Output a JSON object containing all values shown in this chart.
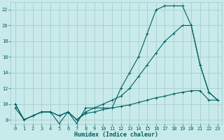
{
  "xlabel": "Humidex (Indice chaleur)",
  "bg_color": "#c8eaea",
  "grid_color": "#a0c8c8",
  "line_color": "#006060",
  "xlim": [
    -0.5,
    23.5
  ],
  "ylim": [
    7.5,
    23
  ],
  "xticks": [
    0,
    1,
    2,
    3,
    4,
    5,
    6,
    7,
    8,
    9,
    10,
    11,
    12,
    13,
    14,
    15,
    16,
    17,
    18,
    19,
    20,
    21,
    22,
    23
  ],
  "yticks": [
    8,
    10,
    12,
    14,
    16,
    18,
    20,
    22
  ],
  "line1_x": [
    0,
    1,
    2,
    3,
    4,
    5,
    6,
    7,
    8,
    9,
    10,
    11,
    12,
    13,
    14,
    15,
    16,
    17,
    18,
    19,
    20,
    21,
    22,
    23
  ],
  "line1_y": [
    10,
    8,
    8.5,
    9,
    9,
    7.5,
    9,
    7.5,
    9.5,
    9.5,
    9.5,
    9.5,
    12,
    14,
    16,
    19,
    22,
    22.5,
    22.5,
    22.5,
    20,
    15,
    11.5,
    10.5
  ],
  "line2_x": [
    0,
    1,
    2,
    3,
    4,
    5,
    6,
    7,
    8,
    9,
    10,
    11,
    12,
    13,
    14,
    15,
    16,
    17,
    18,
    19,
    20,
    21,
    22,
    23
  ],
  "line2_y": [
    10,
    8,
    8.5,
    9,
    9,
    8.5,
    9,
    8,
    9,
    9.5,
    10,
    10.5,
    11,
    12,
    13.5,
    15,
    16.5,
    18,
    19,
    20,
    20,
    15,
    11.5,
    10.5
  ],
  "line3_x": [
    0,
    1,
    2,
    3,
    4,
    5,
    6,
    7,
    8,
    9,
    10,
    11,
    12,
    13,
    14,
    15,
    16,
    17,
    18,
    19,
    20,
    21,
    22,
    23
  ],
  "line3_y": [
    9.5,
    8,
    8.5,
    9,
    9,
    8.5,
    9,
    8,
    8.8,
    9,
    9.3,
    9.5,
    9.7,
    9.9,
    10.2,
    10.5,
    10.8,
    11,
    11.3,
    11.5,
    11.7,
    11.7,
    10.5,
    10.5
  ],
  "tick_fontsize": 5.0,
  "xlabel_fontsize": 6.0
}
